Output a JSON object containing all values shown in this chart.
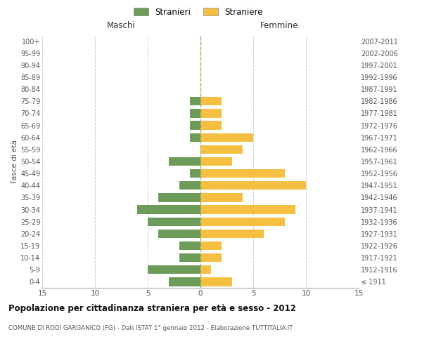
{
  "age_groups": [
    "100+",
    "95-99",
    "90-94",
    "85-89",
    "80-84",
    "75-79",
    "70-74",
    "65-69",
    "60-64",
    "55-59",
    "50-54",
    "45-49",
    "40-44",
    "35-39",
    "30-34",
    "25-29",
    "20-24",
    "15-19",
    "10-14",
    "5-9",
    "0-4"
  ],
  "birth_years": [
    "≤ 1911",
    "1912-1916",
    "1917-1921",
    "1922-1926",
    "1927-1931",
    "1932-1936",
    "1937-1941",
    "1942-1946",
    "1947-1951",
    "1952-1956",
    "1957-1961",
    "1962-1966",
    "1967-1971",
    "1972-1976",
    "1977-1981",
    "1982-1986",
    "1987-1991",
    "1992-1996",
    "1997-2001",
    "2002-2006",
    "2007-2011"
  ],
  "maschi": [
    0,
    0,
    0,
    0,
    0,
    1,
    1,
    1,
    1,
    0,
    3,
    1,
    2,
    4,
    6,
    5,
    4,
    2,
    2,
    5,
    3
  ],
  "femmine": [
    0,
    0,
    0,
    0,
    0,
    2,
    2,
    2,
    5,
    4,
    3,
    8,
    10,
    4,
    9,
    8,
    6,
    2,
    2,
    1,
    3
  ],
  "maschi_color": "#6d9b5a",
  "femmine_color": "#f5c042",
  "background_color": "#ffffff",
  "grid_color": "#cccccc",
  "title": "Popolazione per cittadinanza straniera per età e sesso - 2012",
  "subtitle": "COMUNE DI RODI GARGANICO (FG) - Dati ISTAT 1° gennaio 2012 - Elaborazione TUTTITALIA.IT",
  "ylabel_left": "Fasce di età",
  "xlabel_maschi": "Maschi",
  "xlabel_femmine": "Femmine",
  "legend_stranieri": "Stranieri",
  "legend_straniere": "Straniere",
  "xlim": 15
}
